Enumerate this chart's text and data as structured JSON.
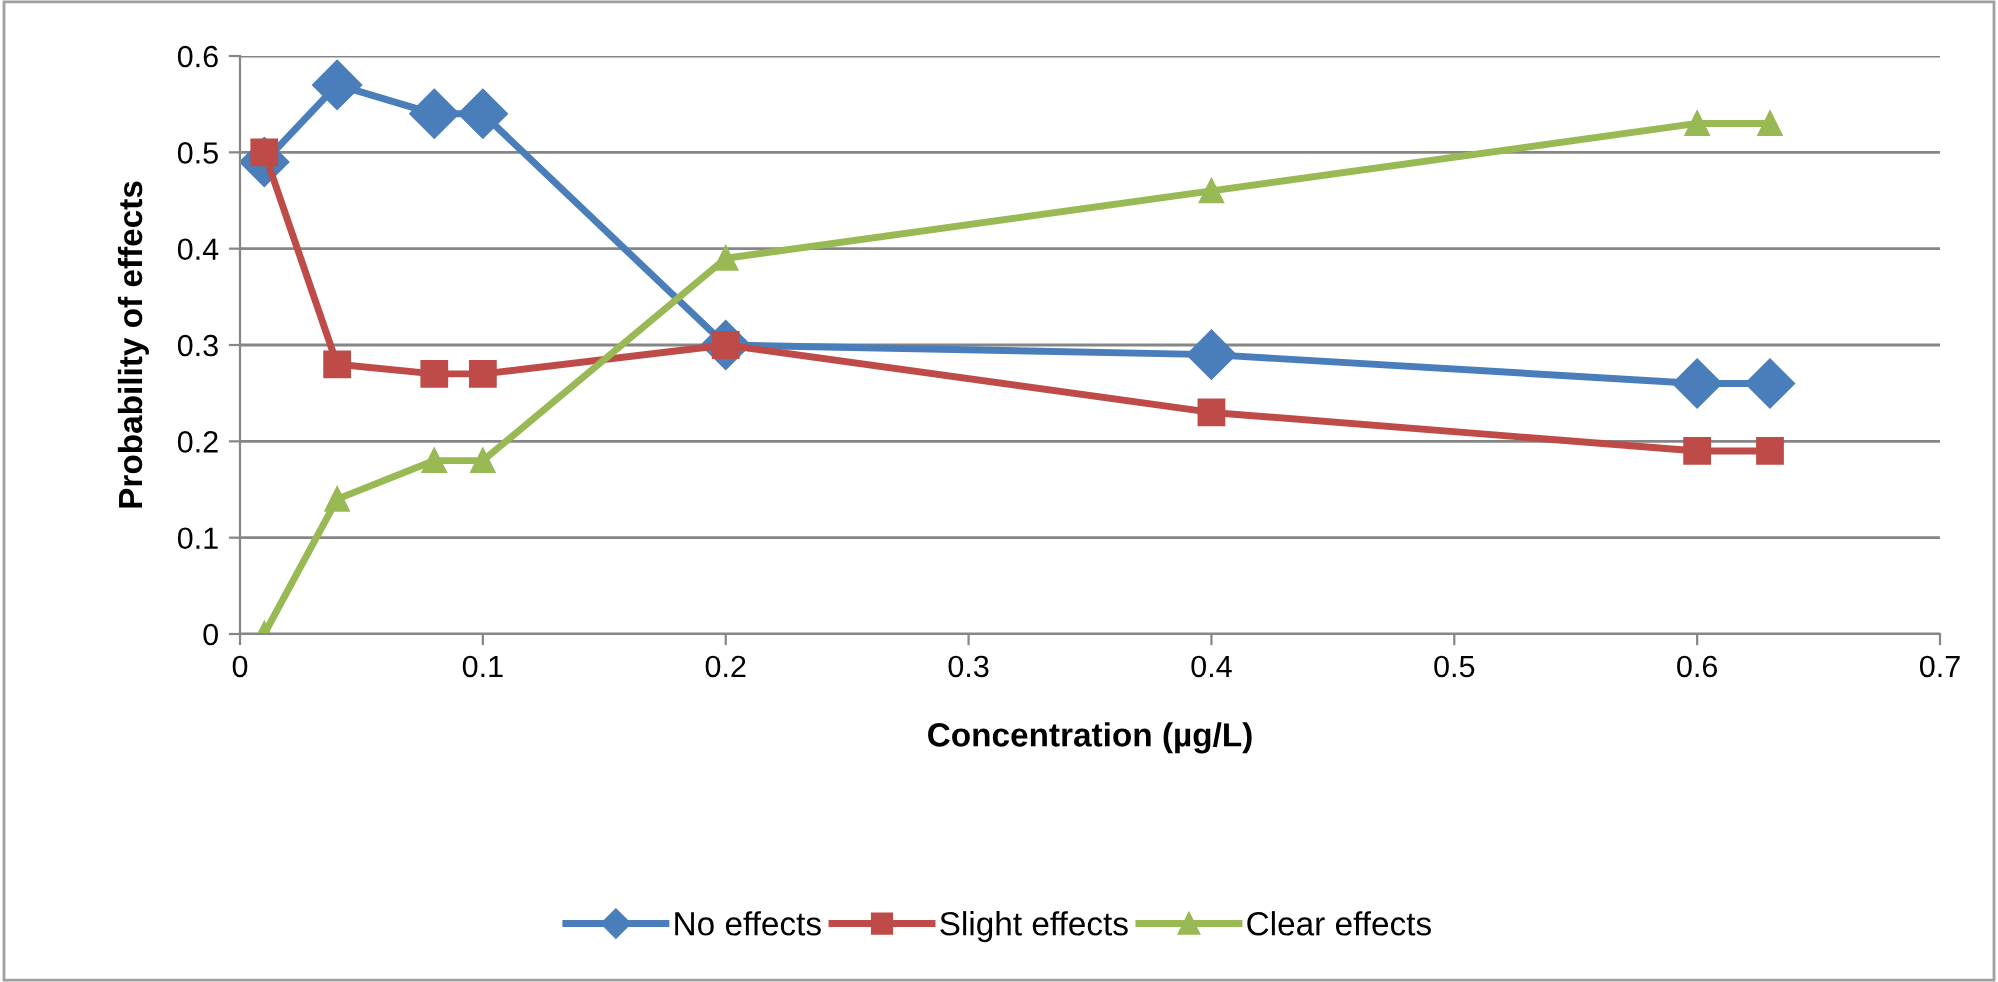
{
  "chart_data": {
    "type": "line",
    "xlabel": "Concentration (µg/L)",
    "ylabel": "Probability of effects",
    "x": [
      0.01,
      0.04,
      0.08,
      0.1,
      0.2,
      0.4,
      0.6,
      0.63
    ],
    "series": [
      {
        "name": "No effects",
        "color": "#4a7ebb",
        "marker": "diamond",
        "values": [
          0.49,
          0.57,
          0.54,
          0.54,
          0.3,
          0.29,
          0.26,
          0.26
        ]
      },
      {
        "name": "Slight effects",
        "color": "#be4b48",
        "marker": "square",
        "values": [
          0.5,
          0.28,
          0.27,
          0.27,
          0.3,
          0.23,
          0.19,
          0.19
        ]
      },
      {
        "name": "Clear effects",
        "color": "#98b954",
        "marker": "triangle",
        "values": [
          0,
          0.14,
          0.18,
          0.18,
          0.39,
          0.46,
          0.53,
          0.53
        ]
      }
    ],
    "xlim": [
      0,
      0.7
    ],
    "xticks": [
      0,
      0.1,
      0.2,
      0.3,
      0.4,
      0.5,
      0.6,
      0.7
    ],
    "ylim": [
      0,
      0.6
    ],
    "yticks": [
      0,
      0.1,
      0.2,
      0.3,
      0.4,
      0.5,
      0.6
    ],
    "grid": "y",
    "legend": "bottom",
    "line_style": "solid"
  }
}
